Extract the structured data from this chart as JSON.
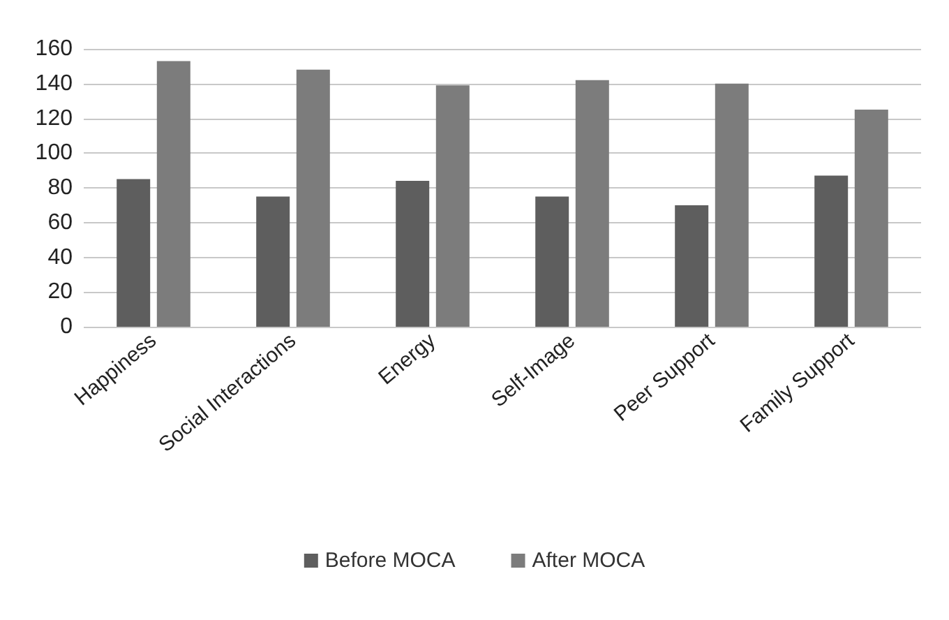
{
  "chart_data": {
    "type": "bar",
    "categories": [
      "Happiness",
      "Social Interactions",
      "Energy",
      "Self-Image",
      "Peer Support",
      "Family Support"
    ],
    "series": [
      {
        "name": "Before MOCA",
        "color": "#5e5e5e",
        "values": [
          85,
          75,
          84,
          75,
          70,
          87
        ]
      },
      {
        "name": "After MOCA",
        "color": "#7c7c7c",
        "values": [
          153,
          148,
          139,
          142,
          140,
          125
        ]
      }
    ],
    "ylim": [
      0,
      160
    ],
    "yticks": [
      0,
      20,
      40,
      60,
      80,
      100,
      120,
      140,
      160
    ],
    "grid": true,
    "legend": "bottom"
  }
}
